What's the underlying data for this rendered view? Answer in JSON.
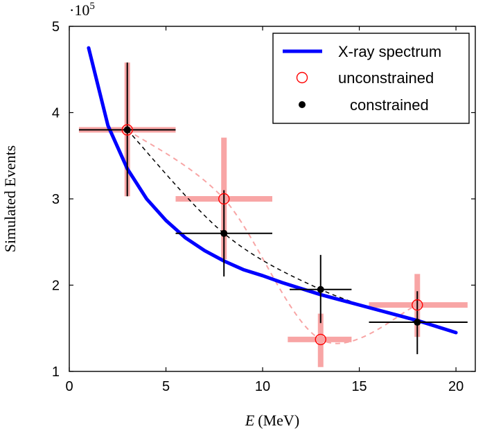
{
  "chart_data": {
    "type": "scatter",
    "xlabel_var": "E",
    "xlabel_unit": "(MeV)",
    "ylabel": "Simulated Events",
    "y_multiplier_base": "·10",
    "y_multiplier_exp": "5",
    "xlim": [
      0,
      21
    ],
    "ylim": [
      1,
      5
    ],
    "xticks": [
      0,
      5,
      10,
      15,
      20
    ],
    "yticks": [
      1,
      2,
      3,
      4,
      5
    ],
    "grid": false,
    "legend_position": "top-right",
    "series": [
      {
        "name": "X-ray spectrum",
        "kind": "line",
        "color": "#0000ff",
        "x": [
          1,
          2,
          3,
          4,
          5,
          6,
          7,
          8,
          9,
          10,
          11,
          12,
          13,
          14,
          15,
          16,
          17,
          18,
          19,
          20
        ],
        "y": [
          4.75,
          3.85,
          3.35,
          3.0,
          2.75,
          2.55,
          2.4,
          2.28,
          2.18,
          2.11,
          2.03,
          1.96,
          1.89,
          1.83,
          1.77,
          1.71,
          1.65,
          1.59,
          1.52,
          1.45
        ]
      },
      {
        "name": "unconstrained",
        "kind": "points",
        "marker": "open-circle",
        "color": "#ff0000",
        "errorbar_color": "#f8a5a5",
        "connector_color": "#f8a5a5",
        "x": [
          3,
          8,
          13,
          18
        ],
        "y": [
          3.8,
          3.0,
          1.37,
          1.77
        ],
        "x_err": [
          [
            0.5,
            5.5
          ],
          [
            5.5,
            10.5
          ],
          [
            11.3,
            14.6
          ],
          [
            15.5,
            20.6
          ]
        ],
        "y_err": [
          [
            3.03,
            4.58
          ],
          [
            2.3,
            3.71
          ],
          [
            1.05,
            1.67
          ],
          [
            1.4,
            2.13
          ]
        ]
      },
      {
        "name": "constrained",
        "kind": "points",
        "marker": "filled-circle",
        "color": "#000000",
        "errorbar_color": "#000000",
        "connector_color": "#000000",
        "x": [
          3,
          8,
          13,
          18
        ],
        "y": [
          3.8,
          2.6,
          1.95,
          1.57
        ],
        "x_err": [
          [
            0.5,
            5.5
          ],
          [
            5.5,
            10.5
          ],
          [
            11.4,
            14.6
          ],
          [
            15.5,
            20.6
          ]
        ],
        "y_err": [
          [
            3.03,
            4.58
          ],
          [
            2.1,
            3.1
          ],
          [
            1.56,
            2.35
          ],
          [
            1.2,
            1.93
          ]
        ]
      }
    ]
  }
}
